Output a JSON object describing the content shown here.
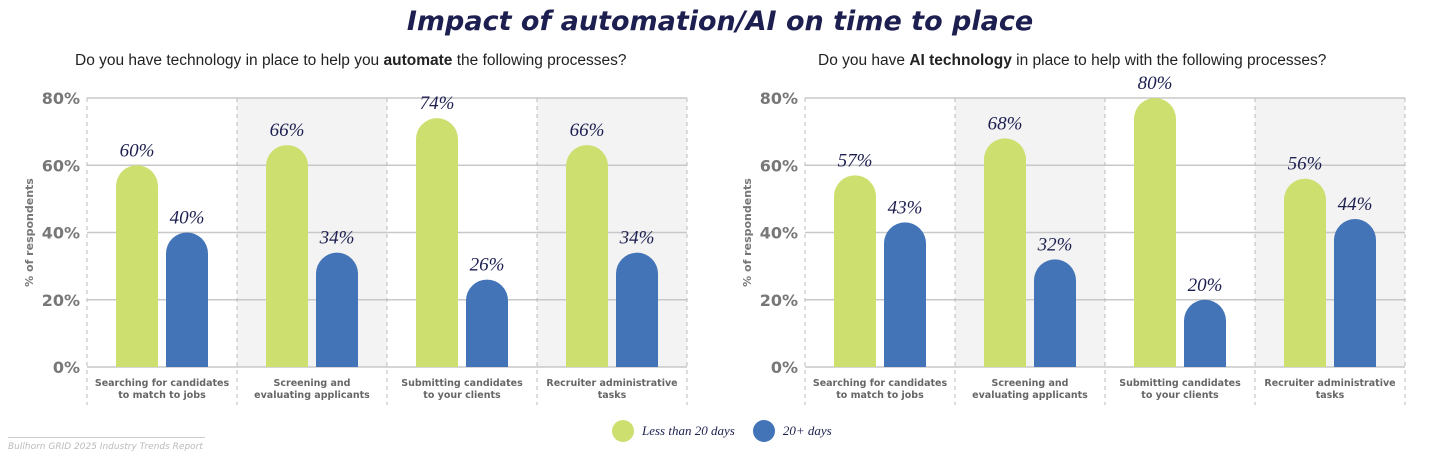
{
  "title": "Impact of automation/AI on time to place",
  "footer": "Bullhorn GRID 2025 Industry Trends Report",
  "legend": [
    {
      "label": "Less than 20 days",
      "color": "#cddf6e"
    },
    {
      "label": "20+ days",
      "color": "#4374b7"
    }
  ],
  "chart_data": [
    {
      "type": "bar",
      "subtitle_pre": "Do you have technology in place to help you ",
      "subtitle_bold": "automate",
      "subtitle_post": " the following processes?",
      "ylabel": "% of respondents",
      "ylim": [
        0,
        80
      ],
      "yticks": [
        "0%",
        "20%",
        "40%",
        "60%",
        "80%"
      ],
      "categories": [
        "Searching for candidates\nto match to jobs",
        "Screening and\nevaluating applicants",
        "Submitting candidates\nto your clients",
        "Recruiter administrative\ntasks"
      ],
      "series": [
        {
          "name": "Less than 20 days",
          "values": [
            60,
            66,
            74,
            66
          ]
        },
        {
          "name": "20+ days",
          "values": [
            40,
            34,
            26,
            34
          ]
        }
      ]
    },
    {
      "type": "bar",
      "subtitle_pre": "Do you have ",
      "subtitle_bold": "AI technology",
      "subtitle_post": " in place to help with the following processes?",
      "ylabel": "% of respondents",
      "ylim": [
        0,
        80
      ],
      "yticks": [
        "0%",
        "20%",
        "40%",
        "60%",
        "80%"
      ],
      "categories": [
        "Searching for candidates\nto match to jobs",
        "Screening and\nevaluating applicants",
        "Submitting candidates\nto your clients",
        "Recruiter administrative\ntasks"
      ],
      "series": [
        {
          "name": "Less than 20 days",
          "values": [
            57,
            68,
            80,
            56
          ]
        },
        {
          "name": "20+ days",
          "values": [
            43,
            32,
            20,
            44
          ]
        }
      ]
    }
  ]
}
